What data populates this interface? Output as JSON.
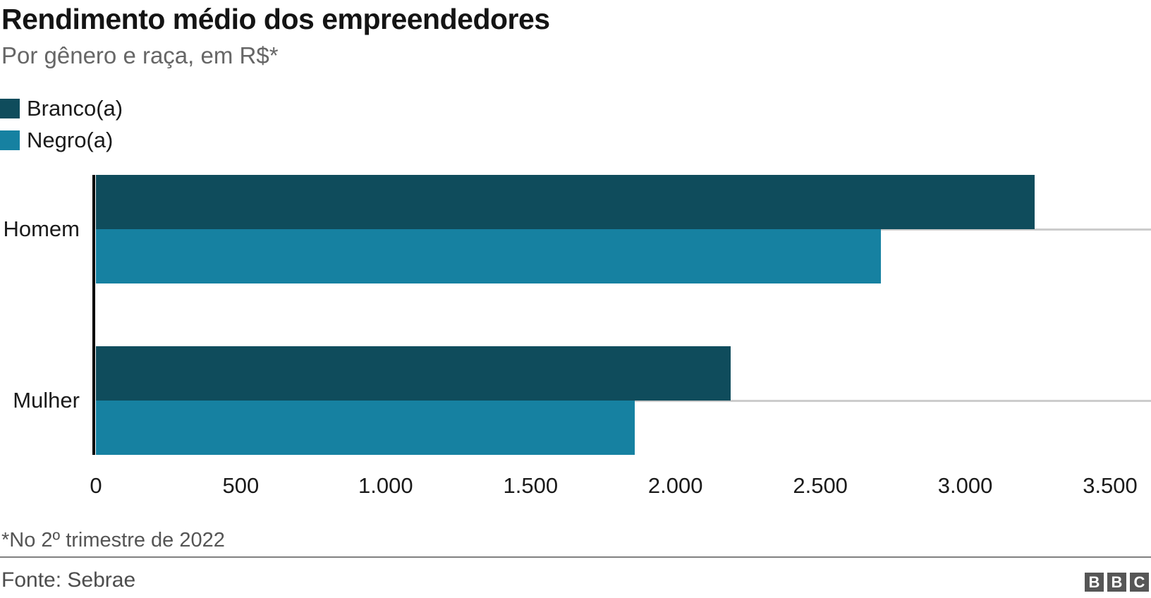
{
  "header": {
    "title": "Rendimento médio dos empreendedores",
    "subtitle": "Por gênero e raça, em R$*"
  },
  "legend": {
    "items": [
      {
        "label": "Branco(a)",
        "color": "#0f4c5c"
      },
      {
        "label": "Negro(a)",
        "color": "#1681a1"
      }
    ]
  },
  "chart_data": {
    "type": "bar",
    "orientation": "horizontal",
    "title": "Rendimento médio dos empreendedores",
    "subtitle": "Por gênero e raça, em R$*",
    "categories": [
      "Homem",
      "Mulher"
    ],
    "series": [
      {
        "name": "Branco(a)",
        "color": "#0f4c5c",
        "values": [
          3240,
          2190
        ]
      },
      {
        "name": "Negro(a)",
        "color": "#1681a1",
        "values": [
          2710,
          1860
        ]
      }
    ],
    "xlim": [
      0,
      3500
    ],
    "x_ticks": [
      {
        "value": 0,
        "label": "0"
      },
      {
        "value": 500,
        "label": "500"
      },
      {
        "value": 1000,
        "label": "1.000"
      },
      {
        "value": 1500,
        "label": "1.500"
      },
      {
        "value": 2000,
        "label": "2.000"
      },
      {
        "value": 2500,
        "label": "2.500"
      },
      {
        "value": 3000,
        "label": "3.000"
      },
      {
        "value": 3500,
        "label": "3.500"
      }
    ],
    "grid": "light gray horizontal line at each category center",
    "grid_color": "#cccccc",
    "axis_color": "#000000",
    "legend_position": "top-left"
  },
  "footer": {
    "footnote": "*No 2º trimestre de 2022",
    "source": "Fonte: Sebrae",
    "logo_letters": [
      "B",
      "B",
      "C"
    ]
  }
}
